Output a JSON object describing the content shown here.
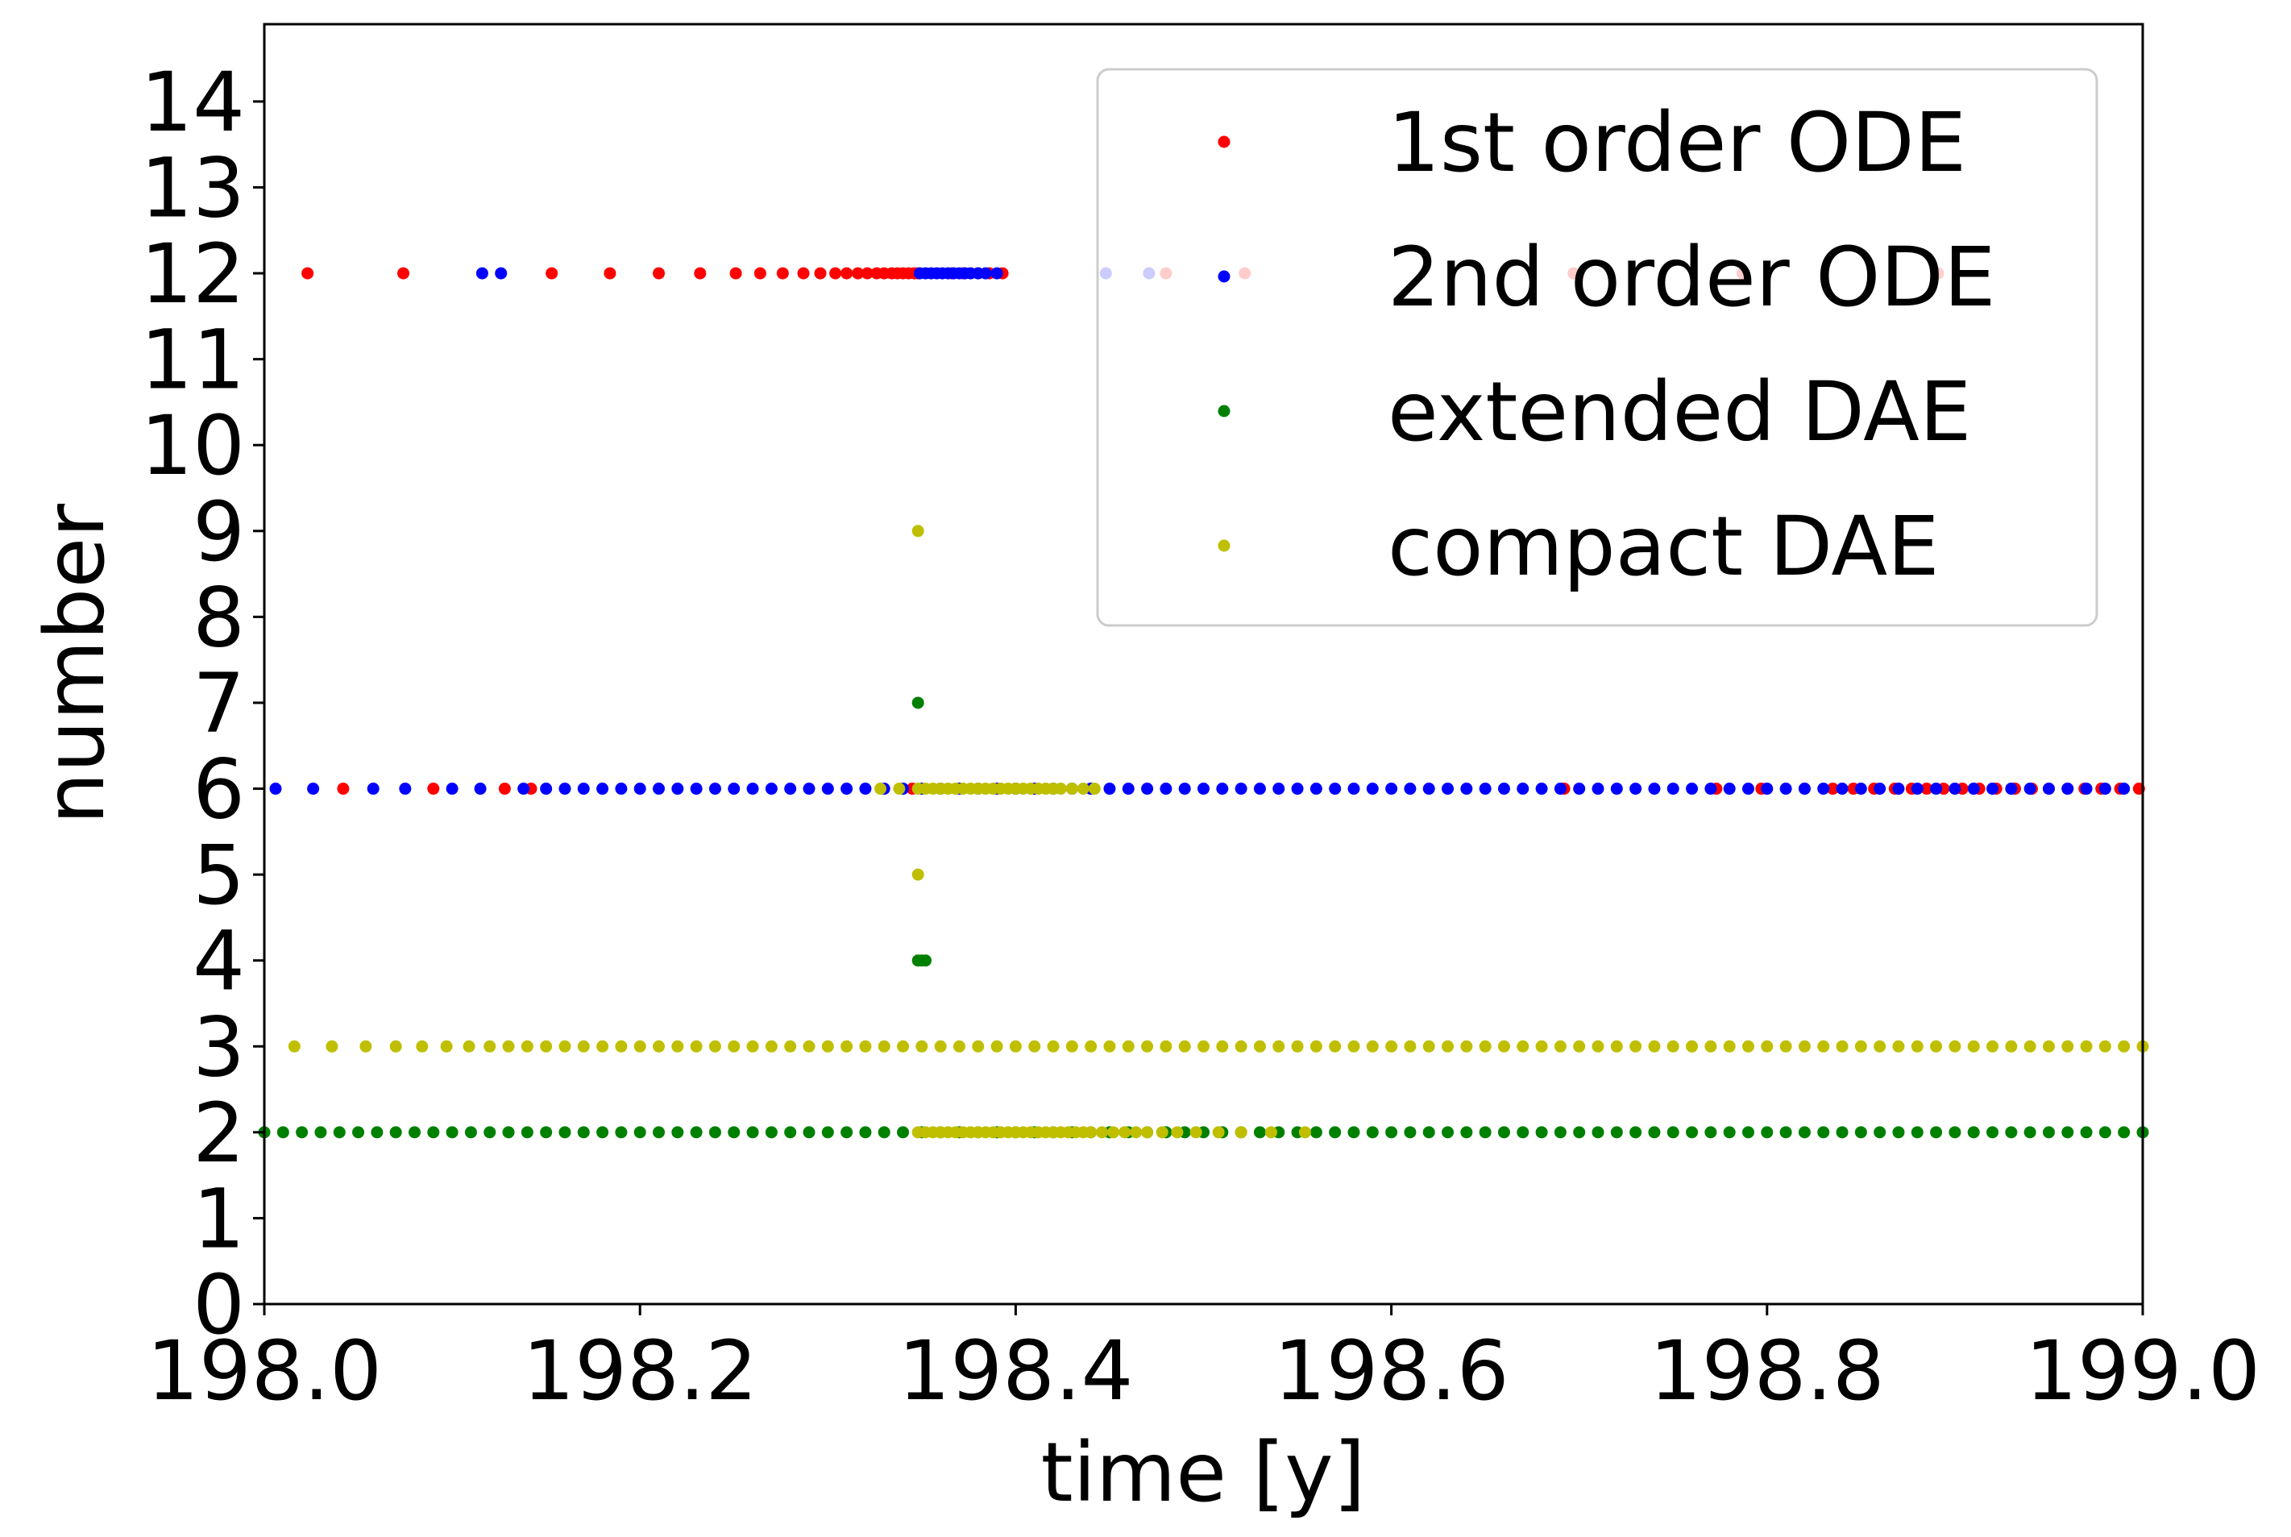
{
  "chart_data": {
    "type": "scatter",
    "title": "",
    "xlabel": "time [y]",
    "ylabel": "number",
    "xlim": [
      198.0,
      199.0
    ],
    "ylim": [
      0,
      14.9
    ],
    "xticks": [
      "198.0",
      "198.2",
      "198.4",
      "198.6",
      "198.8",
      "199.0"
    ],
    "xtick_values": [
      198.0,
      198.2,
      198.4,
      198.6,
      198.8,
      199.0
    ],
    "yticks": [
      "0",
      "1",
      "2",
      "3",
      "4",
      "5",
      "6",
      "7",
      "8",
      "9",
      "10",
      "11",
      "12",
      "13",
      "14"
    ],
    "ytick_values": [
      0,
      1,
      2,
      3,
      4,
      5,
      6,
      7,
      8,
      9,
      10,
      11,
      12,
      13,
      14
    ],
    "grid": false,
    "legend_position": "top-right",
    "series": [
      {
        "name": "1st order ODE",
        "color": "#ff0000",
        "points": [
          {
            "y": 12,
            "x": [
              198.023,
              198.074,
              198.153,
              198.184,
              198.21,
              198.232,
              198.251,
              198.264,
              198.276,
              198.287,
              198.296,
              198.304,
              198.31,
              198.316,
              198.321,
              198.326,
              198.33,
              198.334,
              198.337,
              198.34,
              198.343,
              198.346,
              198.348,
              198.366,
              198.372,
              198.38,
              198.386,
              198.393
            ]
          },
          {
            "y": 12,
            "x": [
              198.48,
              198.522,
              198.697,
              198.787,
              198.891
            ]
          },
          {
            "y": 6,
            "x": [
              198.042,
              198.09,
              198.128,
              198.142,
              198.345,
              198.692,
              198.773,
              198.797,
              198.82,
              198.835,
              198.846,
              198.857,
              198.868,
              198.877,
              198.885,
              198.894,
              198.904,
              198.913,
              198.922,
              198.932,
              198.941,
              198.95,
              198.96,
              198.969,
              198.978,
              198.988,
              198.998
            ]
          }
        ]
      },
      {
        "name": "2nd order ODE",
        "color": "#0000ff",
        "points": [
          {
            "y": 12,
            "x": [
              198.116,
              198.126,
              198.349,
              198.352,
              198.355,
              198.358,
              198.361,
              198.364,
              198.367,
              198.37,
              198.373,
              198.376,
              198.38,
              198.384,
              198.39,
              198.448,
              198.471
            ]
          },
          {
            "y": 6,
            "x": [
              198.006,
              198.026,
              198.058,
              198.075,
              198.1,
              198.115,
              198.138,
              198.15,
              198.16,
              198.17,
              198.18,
              198.19,
              198.2,
              198.21,
              198.22,
              198.23,
              198.24,
              198.25,
              198.26,
              198.27,
              198.28,
              198.29,
              198.3,
              198.31,
              198.32,
              198.33,
              198.34,
              198.35,
              198.36,
              198.37,
              198.38,
              198.39,
              198.4,
              198.41,
              198.42,
              198.43,
              198.44,
              198.45,
              198.46,
              198.47,
              198.48,
              198.49,
              198.5,
              198.51,
              198.52,
              198.53,
              198.54,
              198.55,
              198.56,
              198.57,
              198.58,
              198.59,
              198.6,
              198.61,
              198.62,
              198.63,
              198.64,
              198.65,
              198.66,
              198.67,
              198.68,
              198.69,
              198.7,
              198.71,
              198.72,
              198.73,
              198.74,
              198.75,
              198.76,
              198.77,
              198.78,
              198.79,
              198.8,
              198.81,
              198.82,
              198.83,
              198.84,
              198.85,
              198.86,
              198.87,
              198.88,
              198.89,
              198.9,
              198.91,
              198.92,
              198.93,
              198.94,
              198.95,
              198.96,
              198.97,
              198.98,
              198.99
            ]
          }
        ]
      },
      {
        "name": "extended DAE",
        "color": "#008000",
        "points": [
          {
            "y": 2,
            "x": [
              198.0,
              198.01,
              198.02,
              198.03,
              198.04,
              198.05,
              198.06,
              198.07,
              198.08,
              198.09,
              198.1,
              198.11,
              198.12,
              198.13,
              198.14,
              198.15,
              198.16,
              198.17,
              198.18,
              198.19,
              198.2,
              198.21,
              198.22,
              198.23,
              198.24,
              198.25,
              198.26,
              198.27,
              198.28,
              198.29,
              198.3,
              198.31,
              198.32,
              198.33,
              198.34,
              198.35,
              198.36,
              198.37,
              198.38,
              198.39,
              198.4,
              198.41,
              198.42,
              198.43,
              198.44,
              198.45,
              198.46,
              198.47,
              198.48,
              198.49,
              198.5,
              198.51,
              198.52,
              198.53,
              198.54,
              198.55,
              198.56,
              198.57,
              198.58,
              198.59,
              198.6,
              198.61,
              198.62,
              198.63,
              198.64,
              198.65,
              198.66,
              198.67,
              198.68,
              198.69,
              198.7,
              198.71,
              198.72,
              198.73,
              198.74,
              198.75,
              198.76,
              198.77,
              198.78,
              198.79,
              198.8,
              198.81,
              198.82,
              198.83,
              198.84,
              198.85,
              198.86,
              198.87,
              198.88,
              198.89,
              198.9,
              198.91,
              198.92,
              198.93,
              198.94,
              198.95,
              198.96,
              198.97,
              198.98,
              198.99,
              199.0
            ]
          },
          {
            "y": 4,
            "x": [
              198.348,
              198.35,
              198.352
            ]
          },
          {
            "y": 7,
            "x": [
              198.348
            ]
          }
        ]
      },
      {
        "name": "compact DAE",
        "color": "#bfbf00",
        "points": [
          {
            "y": 3,
            "x": [
              198.016,
              198.036,
              198.054,
              198.07,
              198.084,
              198.097,
              198.109,
              198.12,
              198.13,
              198.14,
              198.15,
              198.16,
              198.17,
              198.18,
              198.19,
              198.2,
              198.21,
              198.22,
              198.23,
              198.24,
              198.25,
              198.26,
              198.27,
              198.28,
              198.29,
              198.3,
              198.31,
              198.32,
              198.33,
              198.34,
              198.35,
              198.36,
              198.37,
              198.38,
              198.39,
              198.4,
              198.41,
              198.42,
              198.43,
              198.44,
              198.45,
              198.46,
              198.47,
              198.48,
              198.49,
              198.5,
              198.51,
              198.52,
              198.53,
              198.54,
              198.55,
              198.56,
              198.57,
              198.58,
              198.59,
              198.6,
              198.61,
              198.62,
              198.63,
              198.64,
              198.65,
              198.66,
              198.67,
              198.68,
              198.69,
              198.7,
              198.71,
              198.72,
              198.73,
              198.74,
              198.75,
              198.76,
              198.77,
              198.78,
              198.79,
              198.8,
              198.81,
              198.82,
              198.83,
              198.84,
              198.85,
              198.86,
              198.87,
              198.88,
              198.89,
              198.9,
              198.91,
              198.92,
              198.93,
              198.94,
              198.95,
              198.96,
              198.97,
              198.98,
              198.99,
              199.0
            ]
          },
          {
            "y": 2,
            "x": [
              198.348,
              198.352,
              198.356,
              198.36,
              198.364,
              198.368,
              198.372,
              198.376,
              198.38,
              198.384,
              198.388,
              198.392,
              198.396,
              198.4,
              198.404,
              198.408,
              198.412,
              198.416,
              198.42,
              198.424,
              198.428,
              198.432,
              198.436,
              198.44,
              198.446,
              198.452,
              198.458,
              198.464,
              198.47,
              198.478,
              198.486,
              198.496,
              198.508,
              198.52,
              198.536,
              198.554
            ]
          },
          {
            "y": 6,
            "x": [
              198.328,
              198.338,
              198.348,
              198.352,
              198.356,
              198.36,
              198.364,
              198.368,
              198.372,
              198.376,
              198.38,
              198.384,
              198.388,
              198.392,
              198.396,
              198.4,
              198.404,
              198.408,
              198.412,
              198.416,
              198.42,
              198.424,
              198.43,
              198.436,
              198.442
            ]
          },
          {
            "y": 5,
            "x": [
              198.348
            ]
          },
          {
            "y": 9,
            "x": [
              198.348
            ]
          }
        ]
      }
    ]
  }
}
